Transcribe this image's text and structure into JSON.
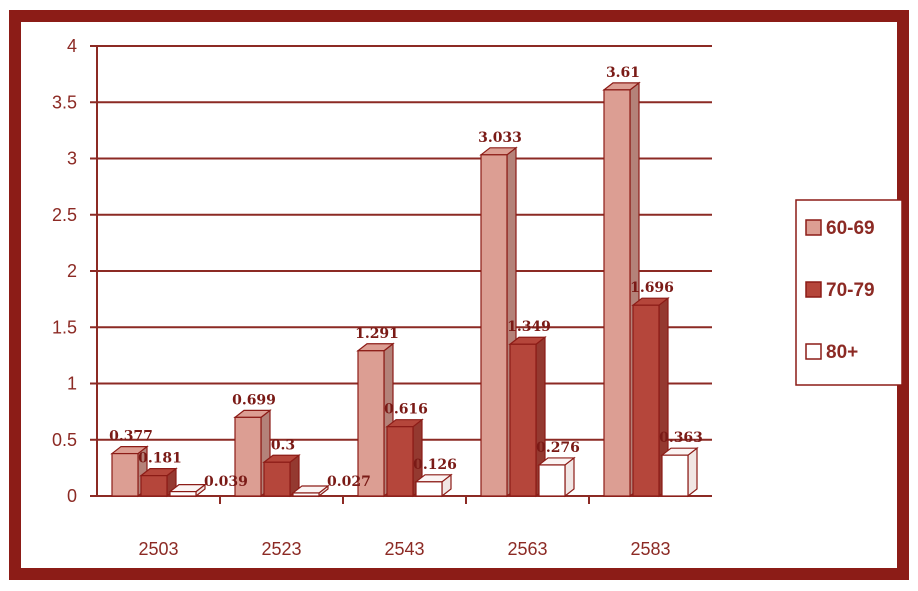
{
  "chart_data": {
    "type": "bar",
    "categories": [
      "2503",
      "2523",
      "2543",
      "2563",
      "2583"
    ],
    "series": [
      {
        "name": "60-69",
        "values": [
          0.377,
          0.699,
          1.291,
          3.033,
          3.61
        ],
        "labels": [
          "0.377",
          "0.699",
          "1.291",
          "3.033",
          "3.61"
        ]
      },
      {
        "name": "70-79",
        "values": [
          0.181,
          0.3,
          0.616,
          1.349,
          1.696
        ],
        "labels": [
          "0.181",
          "0.3",
          "0.616",
          "1.349",
          "1.696"
        ]
      },
      {
        "name": "80+",
        "values": [
          0.039,
          0.027,
          0.126,
          0.276,
          0.363
        ],
        "labels": [
          "0.039",
          "0.027",
          "0.126",
          "0.276",
          "0.363"
        ]
      }
    ],
    "yticks": [
      "0",
      "0.5",
      "1",
      "1.5",
      "2",
      "2.5",
      "3",
      "3.5",
      "4"
    ],
    "ylim": [
      0,
      4
    ],
    "grid": true,
    "legend": "right",
    "colors": {
      "60-69": "#dc9e93",
      "70-79": "#b5463b",
      "80+": "#ffffff",
      "frame": "#8c1c17",
      "grid": "#8c2a24",
      "axis": "#8c2a24"
    }
  }
}
